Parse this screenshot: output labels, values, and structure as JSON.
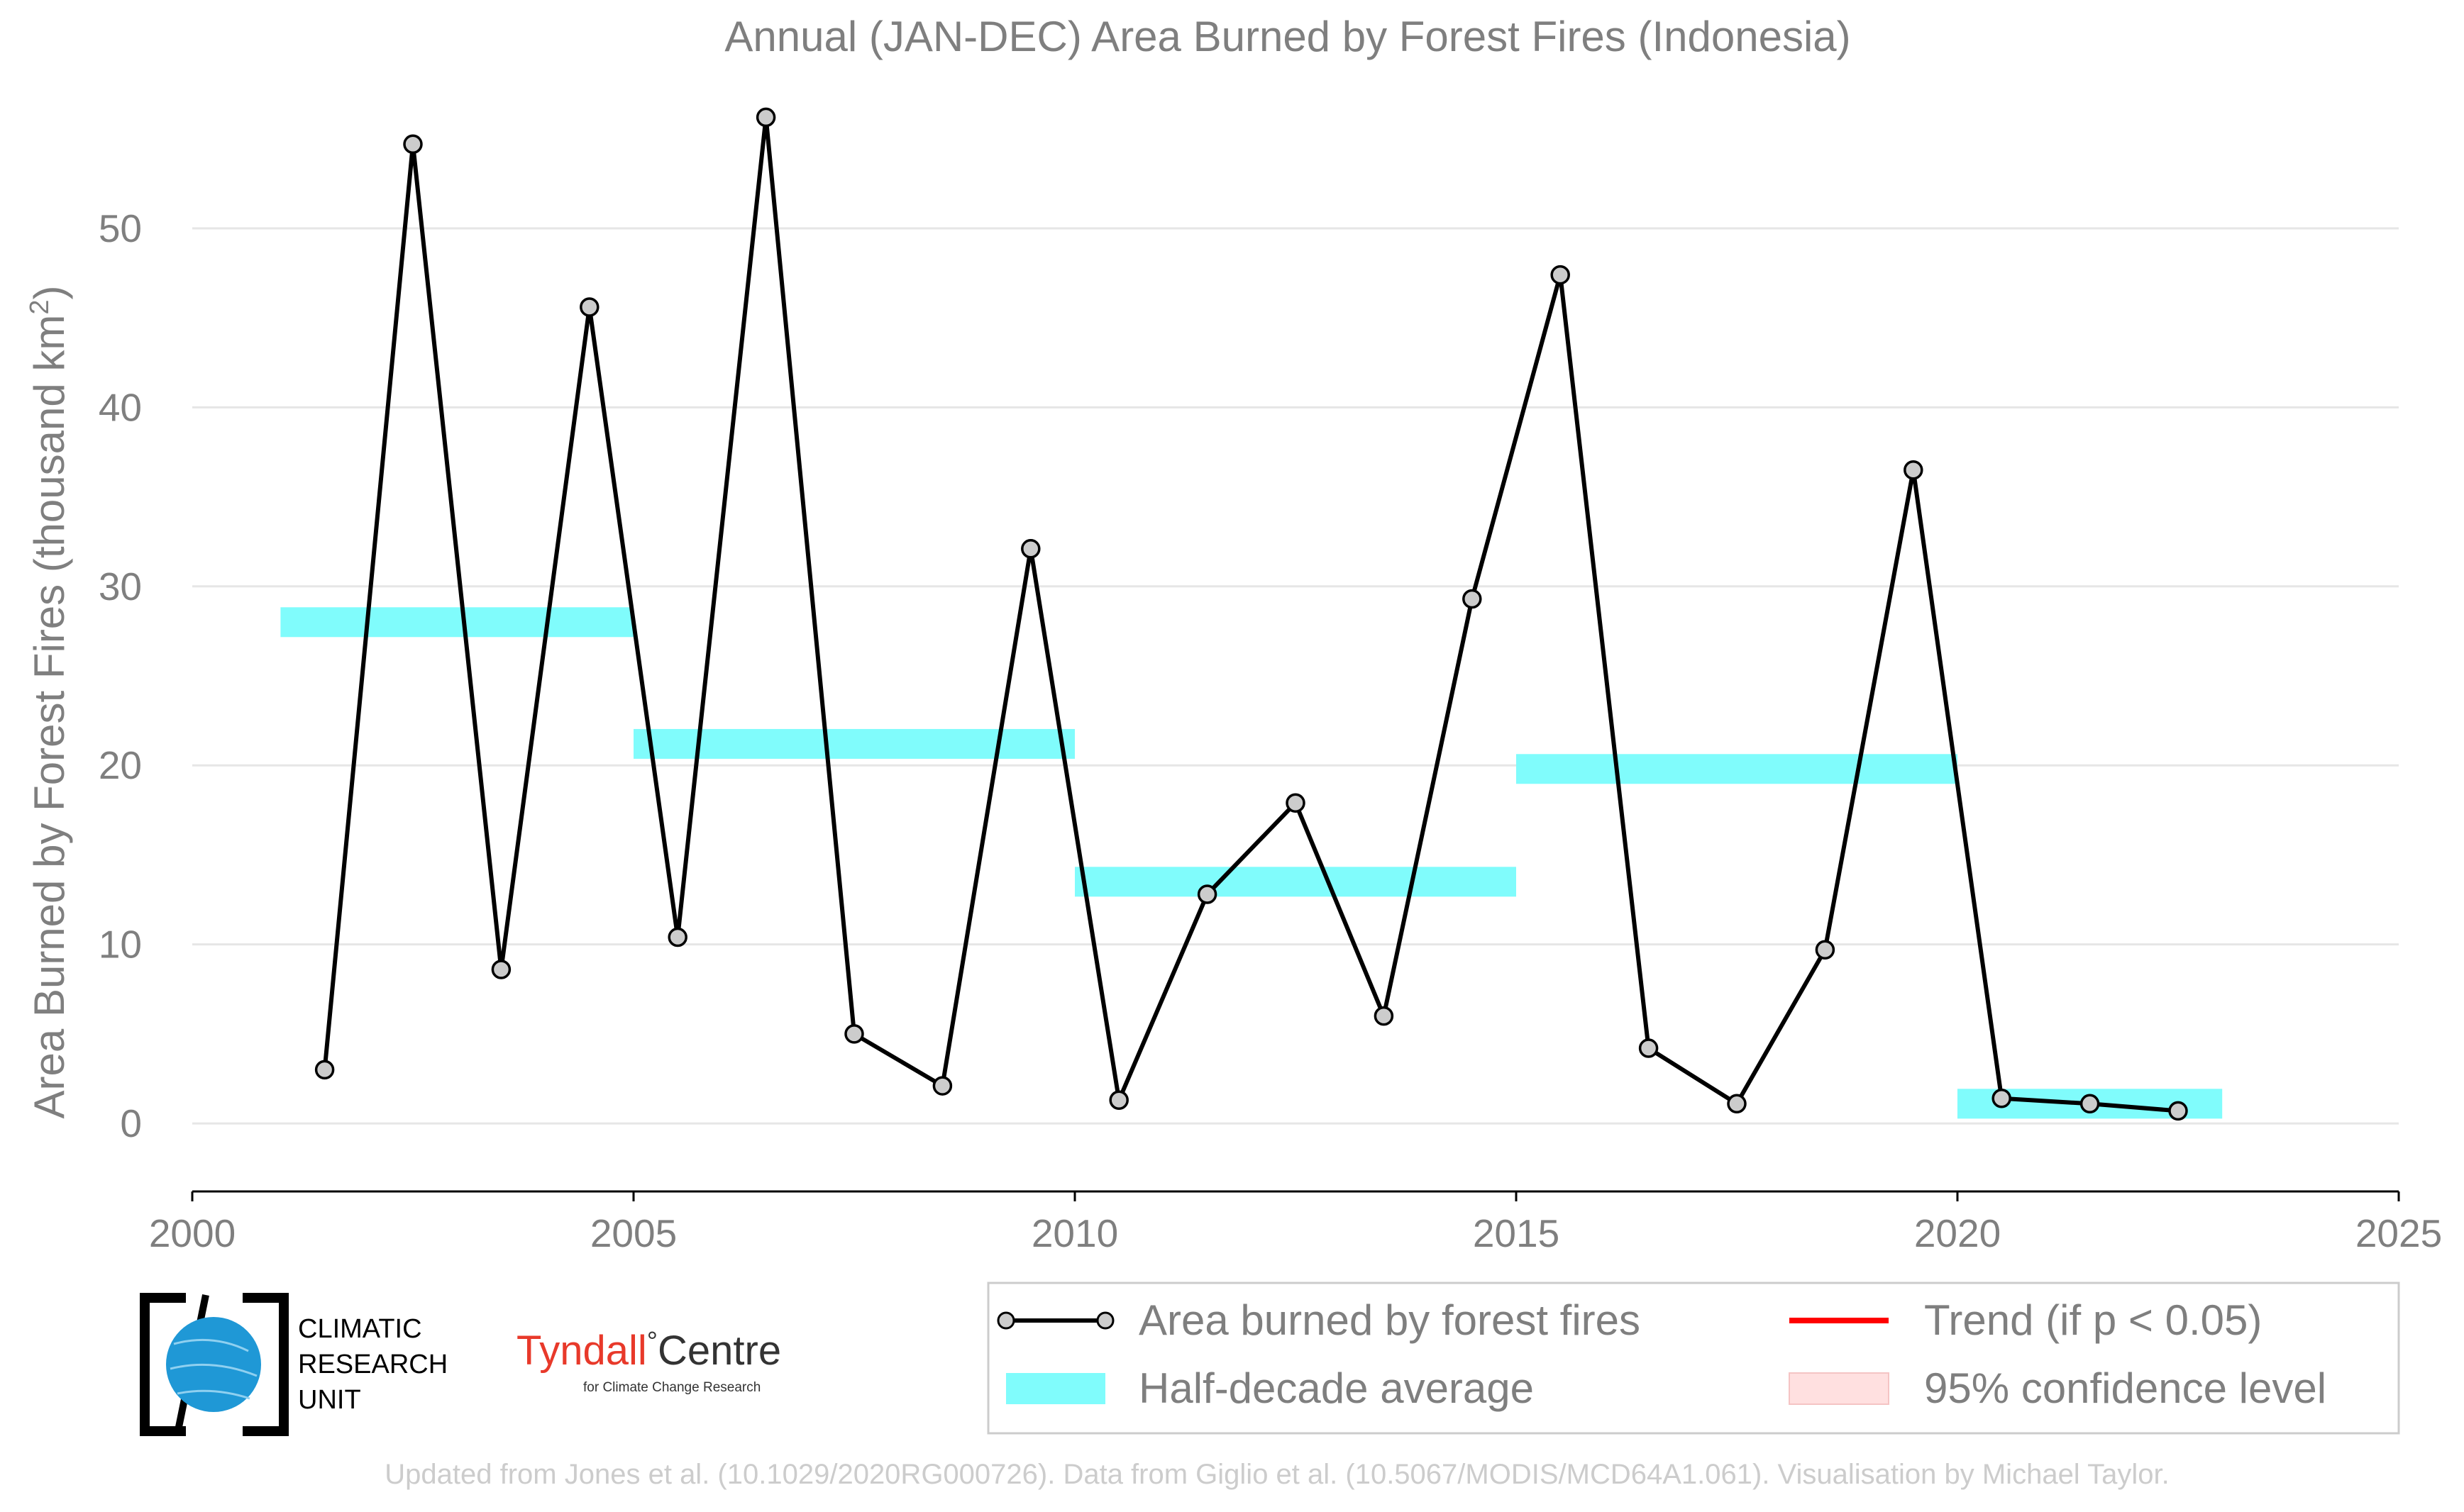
{
  "chart_data": {
    "type": "line",
    "title": "Annual (JAN-DEC) Area Burned by Forest Fires (Indonesia)",
    "xlabel": "",
    "ylabel": "Area Burned by Forest Fires (thousand km",
    "ylabel_sup": "2",
    "ylabel_end": ")",
    "xlim": [
      2000,
      2025
    ],
    "ylim": [
      -3.8,
      58
    ],
    "x_ticks": [
      2000,
      2005,
      2010,
      2015,
      2020,
      2025
    ],
    "y_ticks": [
      0,
      10,
      20,
      30,
      40,
      50
    ],
    "grid": "horizontal",
    "series": [
      {
        "name": "Area burned by forest fires",
        "color": "#000000",
        "marker_fill": "#cccccc",
        "x": [
          2001.5,
          2002.5,
          2003.5,
          2004.5,
          2005.5,
          2006.5,
          2007.5,
          2008.5,
          2009.5,
          2010.5,
          2011.5,
          2012.5,
          2013.5,
          2014.5,
          2015.5,
          2016.5,
          2017.5,
          2018.5,
          2019.5,
          2020.5,
          2021.5,
          2022.5
        ],
        "y": [
          3.0,
          54.7,
          8.6,
          45.6,
          10.4,
          56.2,
          5.0,
          2.1,
          32.1,
          1.3,
          12.8,
          17.9,
          6.0,
          29.3,
          47.4,
          4.2,
          1.1,
          9.7,
          36.5,
          1.4,
          1.1,
          0.7
        ]
      }
    ],
    "half_decade_average": {
      "name": "Half-decade average",
      "color": "#80fcfc",
      "segments": [
        {
          "x_start": 2001,
          "x_end": 2005,
          "value": 28.0
        },
        {
          "x_start": 2005,
          "x_end": 2010,
          "value": 21.2
        },
        {
          "x_start": 2010,
          "x_end": 2015,
          "value": 13.5
        },
        {
          "x_start": 2015,
          "x_end": 2020,
          "value": 19.8
        },
        {
          "x_start": 2020,
          "x_end": 2023,
          "value": 1.1
        }
      ]
    },
    "legend": {
      "placement": "bottom-right",
      "entries": [
        {
          "label": "Area burned by forest fires",
          "type": "line-marker",
          "color": "#000000"
        },
        {
          "label": "Trend (if p < 0.05)",
          "type": "line",
          "color": "#ff0000"
        },
        {
          "label": "Half-decade average",
          "type": "band",
          "color": "#80fcfc"
        },
        {
          "label": "95% confidence level",
          "type": "patch",
          "color": "#ffe0e0"
        }
      ]
    }
  },
  "logos": {
    "cru": {
      "line1": "CLIMATIC",
      "line2": "RESEARCH",
      "line3": "UNIT"
    },
    "tyndall": {
      "name_part1": "Tyndall",
      "degree": "°",
      "name_part2": "Centre",
      "subtitle": "for Climate Change Research",
      "accent_color": "#e8392a"
    }
  },
  "footer": "Updated from Jones et al. (10.1029/2020RG000726). Data from Giglio et al. (10.5067/MODIS/MCD64A1.061). Visualisation by Michael Taylor."
}
